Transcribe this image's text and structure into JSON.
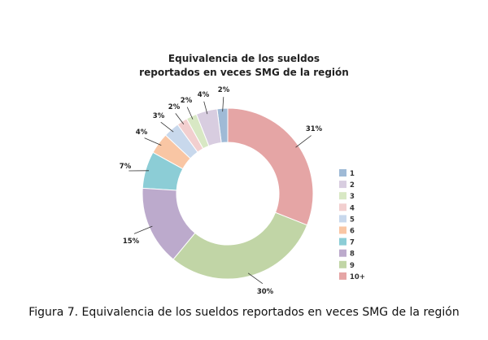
{
  "chart_data": {
    "type": "pie",
    "donut": true,
    "title_lines": [
      "Equivalencia de los sueldos",
      "reportados en veces SMG de la región"
    ],
    "categories": [
      "1",
      "2",
      "3",
      "4",
      "5",
      "6",
      "7",
      "8",
      "9",
      "10+"
    ],
    "values": [
      2,
      4,
      2,
      2,
      3,
      4,
      7,
      15,
      30,
      31
    ],
    "labels": [
      "2%",
      "4%",
      "2%",
      "2%",
      "3%",
      "4%",
      "7%",
      "15%",
      "30%",
      "31%"
    ],
    "colors": [
      "#9fbad6",
      "#d8cde0",
      "#d8e8c4",
      "#f2cfcf",
      "#c8d8ec",
      "#f9c6a4",
      "#8ccdd6",
      "#bcaacc",
      "#c1d5a6",
      "#e5a5a5"
    ],
    "legend_position": "right"
  },
  "caption": {
    "prefix": "Figura 7.",
    "text": " Equivalencia de los sueldos reportados en veces SMG de la región"
  }
}
